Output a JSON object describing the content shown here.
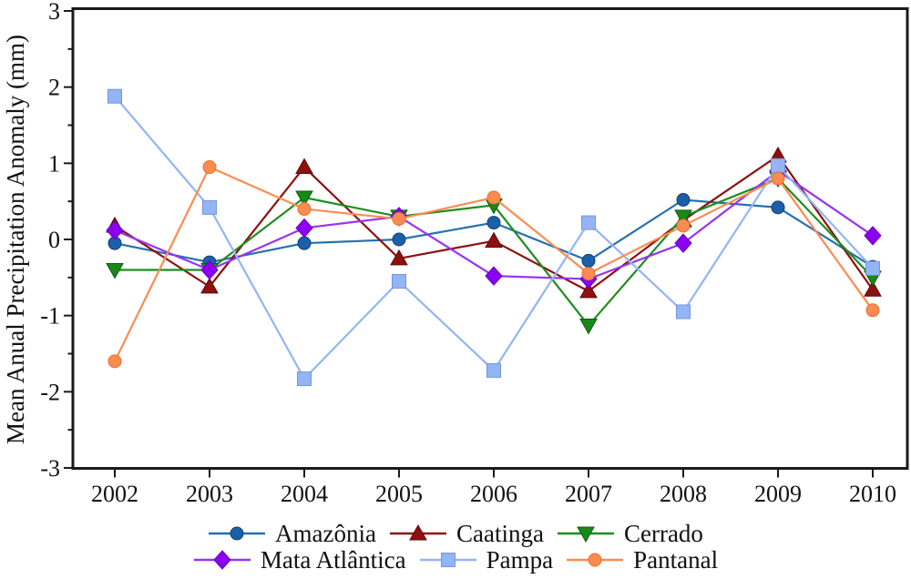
{
  "chart_data": {
    "type": "line",
    "title": "",
    "xlabel": "",
    "ylabel": "Mean Anual Precipitation Anomaly (mm)",
    "x": [
      2002,
      2003,
      2004,
      2005,
      2006,
      2007,
      2008,
      2009,
      2010
    ],
    "ylim": [
      -3,
      3
    ],
    "yticks": [
      "3",
      "2",
      "1",
      "0",
      "-1",
      "-2",
      "-3"
    ],
    "ytick_minor_step": 0.5,
    "grid": false,
    "legend_position": "bottom",
    "frame": "full-box",
    "series": [
      {
        "name": "Amazônia",
        "marker": "circle",
        "color": "#1B5FA8",
        "edge_color": "#123F73",
        "line_color": "#2471B0",
        "values": [
          -0.05,
          -0.3,
          -0.05,
          0.0,
          0.22,
          -0.28,
          0.52,
          0.42,
          -0.36
        ]
      },
      {
        "name": "Caatinga",
        "marker": "triangle-up",
        "color": "#8E1010",
        "edge_color": "#5E0808",
        "line_color": "#8E1010",
        "values": [
          0.18,
          -0.62,
          0.95,
          -0.25,
          -0.02,
          -0.68,
          0.25,
          1.1,
          -0.66
        ]
      },
      {
        "name": "Cerrado",
        "marker": "triangle-down",
        "color": "#188818",
        "edge_color": "#0E5E0E",
        "line_color": "#1E8E1E",
        "values": [
          -0.4,
          -0.4,
          0.55,
          0.3,
          0.45,
          -1.13,
          0.3,
          0.8,
          -0.5
        ]
      },
      {
        "name": "Mata Atlântica",
        "marker": "diamond",
        "color": "#8B00F2",
        "edge_color": "#6A00BB",
        "line_color": "#9933F2",
        "values": [
          0.12,
          -0.4,
          0.15,
          0.3,
          -0.48,
          -0.52,
          -0.05,
          0.9,
          0.05
        ]
      },
      {
        "name": "Pampa",
        "marker": "square",
        "color": "#93B5F5",
        "edge_color": "#7396E0",
        "line_color": "#93B5F5",
        "values": [
          1.88,
          0.42,
          -1.83,
          -0.55,
          -1.72,
          0.22,
          -0.95,
          0.97,
          -0.38
        ]
      },
      {
        "name": "Pantanal",
        "marker": "circle",
        "color": "#FB8C51",
        "edge_color": "#E5702F",
        "line_color": "#FB8C51",
        "values": [
          -1.6,
          0.95,
          0.4,
          0.27,
          0.55,
          -0.45,
          0.18,
          0.8,
          -0.93
        ]
      }
    ]
  }
}
